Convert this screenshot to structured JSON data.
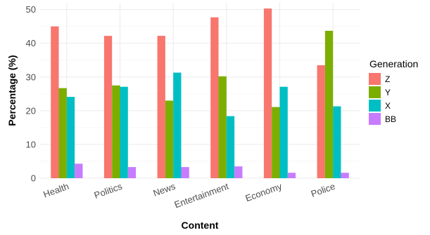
{
  "chart_data": {
    "type": "bar",
    "xlabel": "Content",
    "ylabel": "Percentage (%)",
    "categories": [
      "Health",
      "Politics",
      "News",
      "Entertainment",
      "Economy",
      "Police"
    ],
    "ylim": [
      0,
      52
    ],
    "yticks": [
      0,
      10,
      20,
      30,
      40,
      50
    ],
    "grid": true,
    "legend": {
      "title": "Generation",
      "position": "right"
    },
    "series": [
      {
        "name": "Z",
        "color": "#F8766D",
        "values": [
          45.0,
          42.2,
          42.2,
          47.7,
          50.3,
          33.5
        ]
      },
      {
        "name": "Y",
        "color": "#7CAE00",
        "values": [
          26.7,
          27.5,
          23.0,
          30.2,
          21.1,
          43.7
        ]
      },
      {
        "name": "X",
        "color": "#00BFC4",
        "values": [
          24.1,
          27.1,
          31.3,
          18.4,
          27.1,
          21.3
        ]
      },
      {
        "name": "BB",
        "color": "#C77CFF",
        "values": [
          4.3,
          3.3,
          3.3,
          3.5,
          1.6,
          1.6
        ]
      }
    ]
  }
}
